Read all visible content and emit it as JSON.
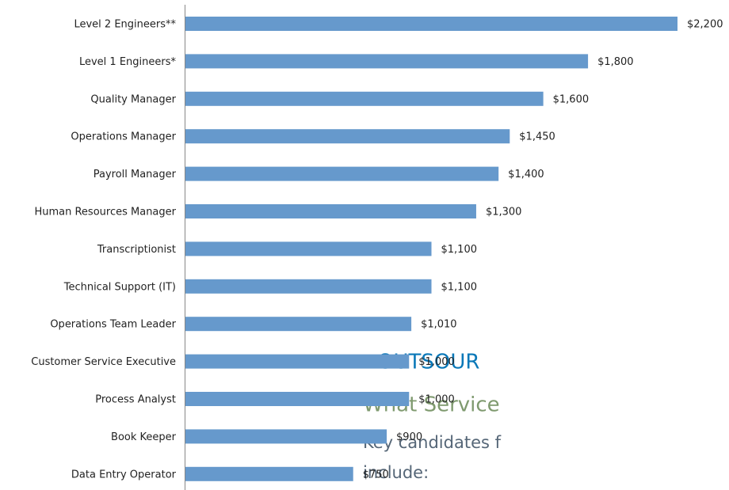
{
  "chart_data": {
    "type": "barh",
    "categories": [
      "Level 2 Engineers**",
      "Level 1 Engineers*",
      "Quality Manager",
      "Operations Manager",
      "Payroll Manager",
      "Human Resources Manager",
      "Transcriptionist",
      "Technical Support (IT)",
      "Operations Team Leader",
      "Customer Service Executive",
      "Process Analyst",
      "Book Keeper",
      "Data Entry Operator"
    ],
    "values": [
      2200,
      1800,
      1600,
      1450,
      1400,
      1300,
      1100,
      1100,
      1010,
      1000,
      1000,
      900,
      750
    ],
    "value_labels": [
      "$2,200",
      "$1,800",
      "$1,600",
      "$1,450",
      "$1,400",
      "$1,300",
      "$1,100",
      "$1,100",
      "$1,010",
      "$1,000",
      "$1,000",
      "$900",
      "$750"
    ],
    "color": "#6699cc",
    "xlim": [
      0,
      2200
    ]
  },
  "side_text": {
    "heading": "OUTSOUR",
    "subheading": "What Service",
    "body": [
      "Key candidates f",
      "include:"
    ]
  }
}
